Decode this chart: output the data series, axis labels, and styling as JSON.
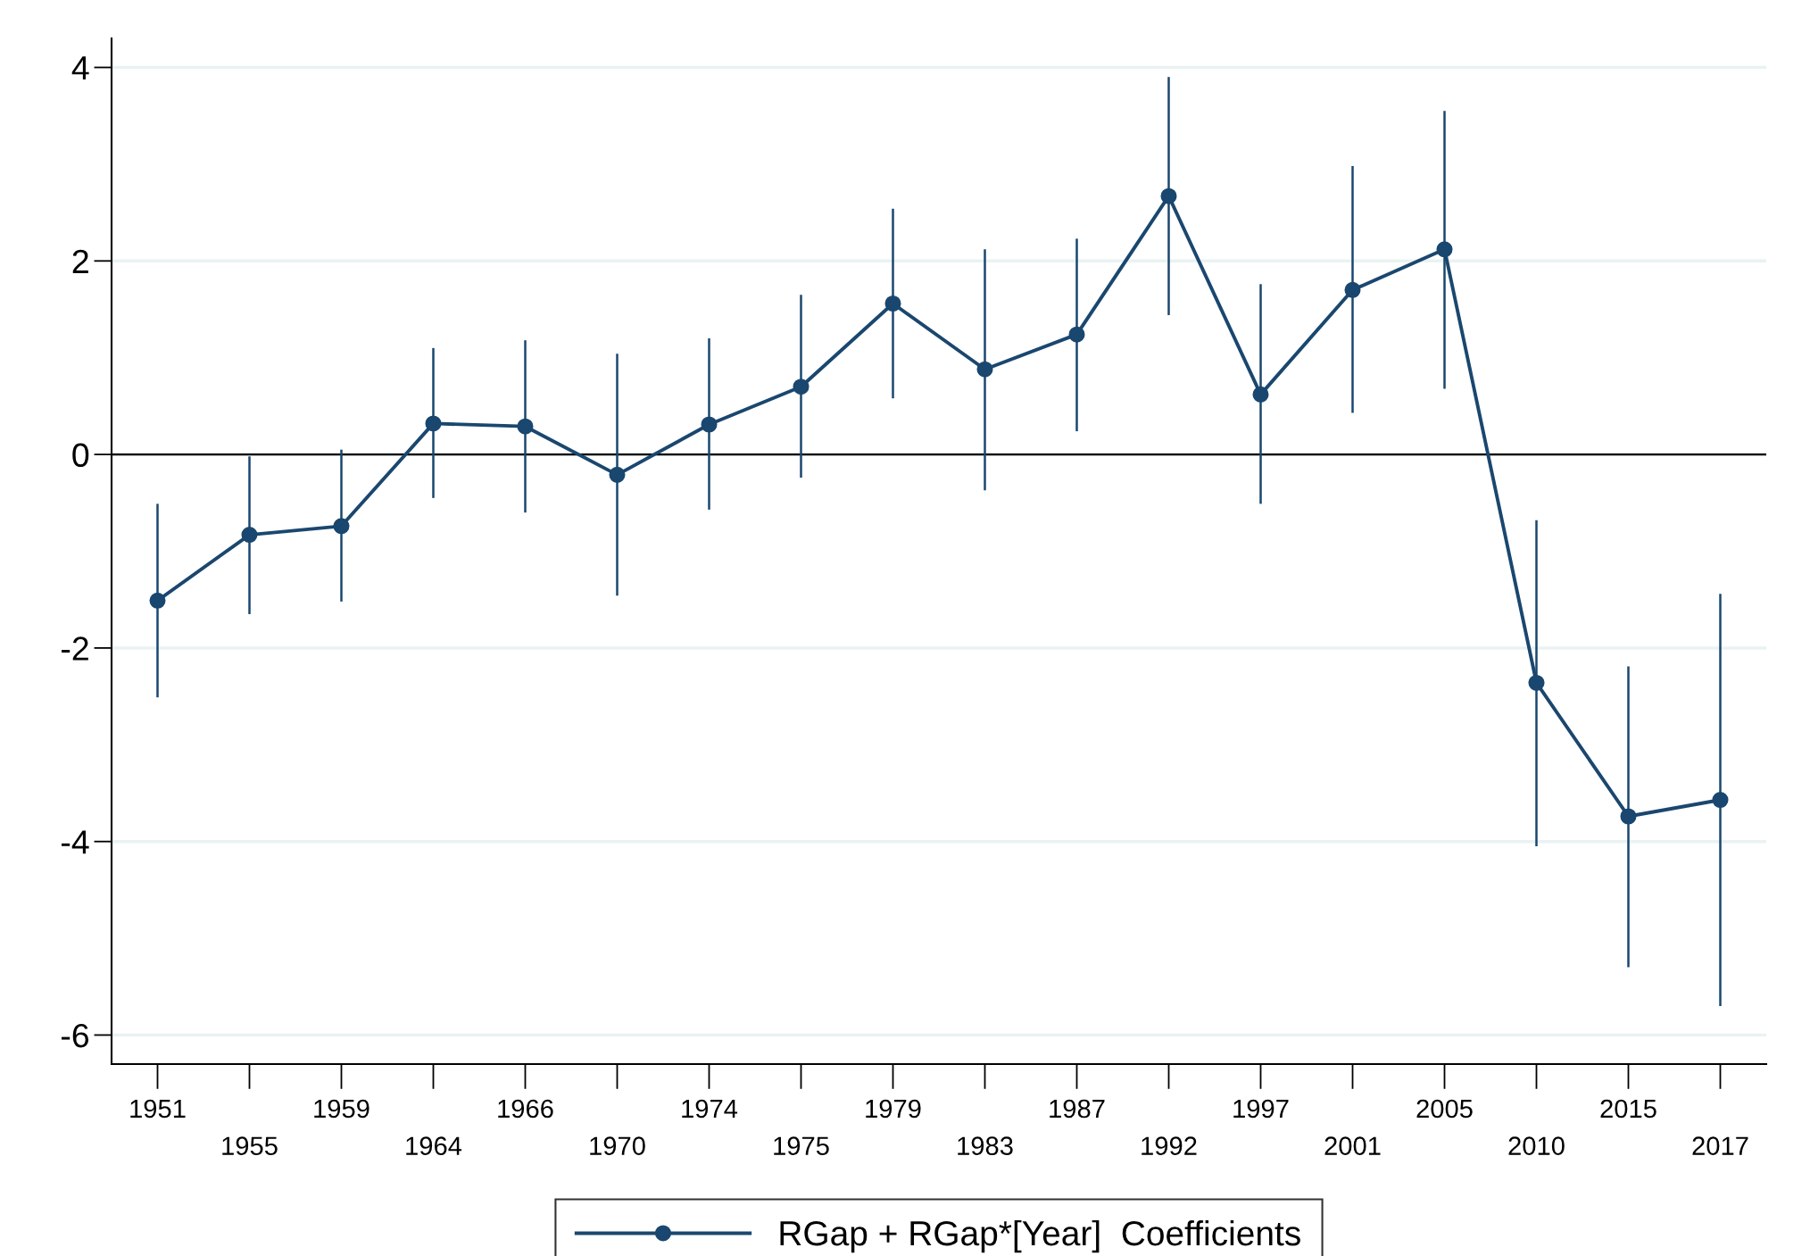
{
  "chart_data": {
    "type": "line",
    "categories": [
      "1951",
      "1955",
      "1959",
      "1964",
      "1966",
      "1970",
      "1974",
      "1975",
      "1979",
      "1983",
      "1987",
      "1992",
      "1997",
      "2001",
      "2005",
      "2010",
      "2015",
      "2017"
    ],
    "series": [
      {
        "name": "RGap + RGap*[Year]  Coefficients",
        "color": "#1a476f",
        "values": [
          -1.51,
          -0.83,
          -0.74,
          0.32,
          0.29,
          -0.21,
          0.31,
          0.7,
          1.56,
          0.88,
          1.24,
          2.67,
          0.62,
          1.7,
          2.12,
          -2.36,
          -3.74,
          -3.57
        ],
        "errors": [
          [
            -2.51,
            -0.51
          ],
          [
            -1.65,
            -0.02
          ],
          [
            -1.52,
            0.05
          ],
          [
            -0.45,
            1.1
          ],
          [
            -0.6,
            1.18
          ],
          [
            -1.46,
            1.04
          ],
          [
            -0.57,
            1.2
          ],
          [
            -0.24,
            1.65
          ],
          [
            0.58,
            2.54
          ],
          [
            -0.37,
            2.12
          ],
          [
            0.24,
            2.23
          ],
          [
            1.44,
            3.9
          ],
          [
            -0.51,
            1.76
          ],
          [
            0.43,
            2.98
          ],
          [
            0.68,
            3.55
          ],
          [
            -4.05,
            -0.68
          ],
          [
            -5.3,
            -2.19
          ],
          [
            -5.7,
            -1.44
          ]
        ]
      }
    ],
    "ylim": [
      -6.3,
      4.3
    ],
    "yticks": [
      -6,
      -4,
      -2,
      0,
      2,
      4
    ],
    "grid": "y",
    "marker": "circle",
    "line_style": "solid",
    "legend": "bottom",
    "ref_lines": [
      {
        "axis": "y",
        "value": 0,
        "color": "#000000"
      }
    ]
  }
}
